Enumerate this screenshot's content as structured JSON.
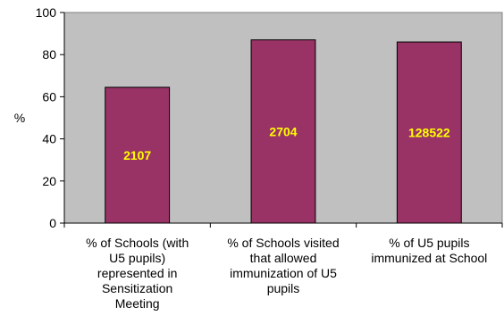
{
  "chart_data": {
    "type": "bar",
    "title": "",
    "xlabel": "",
    "ylabel": "%",
    "ylim": [
      0,
      100
    ],
    "yticks": [
      0,
      20,
      40,
      60,
      80,
      100
    ],
    "grid": false,
    "categories": [
      [
        "% of Schools (with",
        "U5 pupils)",
        "represented in",
        "Sensitization",
        "Meeting"
      ],
      [
        "% of Schools visited",
        "that allowed",
        "immunization of U5",
        "pupils"
      ],
      [
        "% of U5 pupils",
        "immunized at School"
      ]
    ],
    "values": [
      64.5,
      87,
      86
    ],
    "data_labels": [
      "2107",
      "2704",
      "128522"
    ],
    "colors": {
      "bar": "#993366",
      "plot_background": "#c0c0c0",
      "data_label": "#ffff00"
    }
  }
}
